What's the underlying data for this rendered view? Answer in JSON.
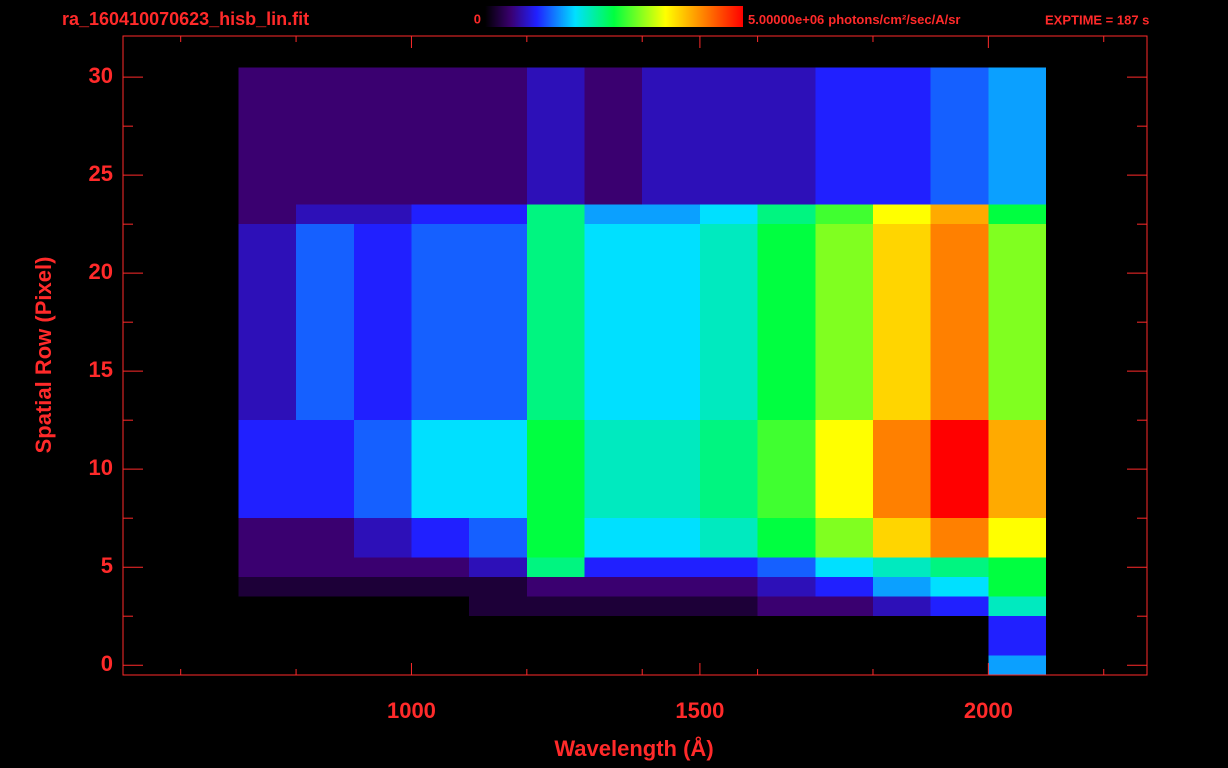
{
  "chart_data": {
    "type": "heatmap",
    "title": "ra_160410070623_hisb_lin.fit",
    "exptime": "EXPTIME = 187 s",
    "xlabel": "Wavelength (Å)",
    "ylabel": "Spatial Row (Pixel)",
    "xlim": [
      500,
      2275
    ],
    "xticks": [
      1000,
      1500,
      2000
    ],
    "xminorticks": [
      600,
      800,
      1200,
      1400,
      1600,
      1800,
      2200
    ],
    "ylim": [
      -0.5,
      32.1
    ],
    "yticks": [
      0,
      5,
      10,
      15,
      20,
      25,
      30
    ],
    "yminorticks": [
      2.5,
      7.5,
      12.5,
      17.5,
      22.5,
      27.5
    ],
    "zlim": [
      0,
      5000000
    ],
    "zticks": [
      0,
      {
        "value": 5000000,
        "label": "5.00000e+06"
      }
    ],
    "zunits": "photons/cm²/sec/A/sr",
    "x_bins": [
      700,
      800,
      900,
      1000,
      1100,
      1200,
      1300,
      1400,
      1500,
      1600,
      1700,
      1800,
      1900,
      2000,
      2100
    ],
    "y": [
      0,
      1,
      2,
      3,
      4,
      5,
      6,
      7,
      8,
      9,
      10,
      11,
      12,
      13,
      14,
      15,
      16,
      17,
      18,
      19,
      20,
      21,
      22,
      23,
      24,
      25,
      26,
      27,
      28,
      29,
      30
    ],
    "values": [
      [
        0,
        0,
        0,
        0,
        0,
        0,
        0,
        0,
        0,
        0,
        0,
        0,
        0,
        1500000.0
      ],
      [
        0,
        0,
        0,
        0,
        0,
        0,
        0,
        0,
        0,
        0,
        0,
        0,
        0,
        1000000.0
      ],
      [
        0,
        0,
        0,
        0,
        0,
        0,
        0,
        0,
        0,
        0,
        0,
        0,
        0,
        1000000.0
      ],
      [
        0,
        0,
        0,
        0,
        250000.0,
        250000.0,
        250000.0,
        250000.0,
        250000.0,
        500000.0,
        500000.0,
        750000.0,
        1000000.0,
        2000000.0
      ],
      [
        250000.0,
        250000.0,
        250000.0,
        250000.0,
        250000.0,
        500000.0,
        500000.0,
        500000.0,
        500000.0,
        750000.0,
        1000000.0,
        1500000.0,
        1750000.0,
        2500000.0
      ],
      [
        500000.0,
        500000.0,
        500000.0,
        500000.0,
        750000.0,
        2250000.0,
        1000000.0,
        1000000.0,
        1000000.0,
        1250000.0,
        1750000.0,
        2000000.0,
        2250000.0,
        2500000.0
      ],
      [
        500000.0,
        500000.0,
        750000.0,
        1000000.0,
        1250000.0,
        2500000.0,
        1750000.0,
        1750000.0,
        2000000.0,
        2500000.0,
        3000000.0,
        3750000.0,
        4250000.0,
        3500000.0
      ],
      [
        500000.0,
        500000.0,
        750000.0,
        1000000.0,
        1250000.0,
        2500000.0,
        1750000.0,
        1750000.0,
        2000000.0,
        2500000.0,
        3000000.0,
        3750000.0,
        4250000.0,
        3500000.0
      ],
      [
        1000000.0,
        1000000.0,
        1250000.0,
        1750000.0,
        1750000.0,
        2500000.0,
        2000000.0,
        2000000.0,
        2250000.0,
        2750000.0,
        3500000.0,
        4250000.0,
        5000000.0,
        4000000.0
      ],
      [
        1000000.0,
        1000000.0,
        1250000.0,
        1750000.0,
        1750000.0,
        2500000.0,
        2000000.0,
        2000000.0,
        2250000.0,
        2750000.0,
        3500000.0,
        4250000.0,
        5000000.0,
        4000000.0
      ],
      [
        1000000.0,
        1000000.0,
        1250000.0,
        1750000.0,
        1750000.0,
        2500000.0,
        2000000.0,
        2000000.0,
        2250000.0,
        2750000.0,
        3500000.0,
        4250000.0,
        5000000.0,
        4000000.0
      ],
      [
        1000000.0,
        1000000.0,
        1250000.0,
        1750000.0,
        1750000.0,
        2500000.0,
        2000000.0,
        2000000.0,
        2250000.0,
        2750000.0,
        3500000.0,
        4250000.0,
        5000000.0,
        4000000.0
      ],
      [
        1000000.0,
        1000000.0,
        1250000.0,
        1750000.0,
        1750000.0,
        2500000.0,
        2000000.0,
        2000000.0,
        2250000.0,
        2750000.0,
        3500000.0,
        4250000.0,
        5000000.0,
        4000000.0
      ],
      [
        750000.0,
        1250000.0,
        1000000.0,
        1250000.0,
        1250000.0,
        2250000.0,
        1750000.0,
        1750000.0,
        2000000.0,
        2500000.0,
        3000000.0,
        3750000.0,
        4250000.0,
        3000000.0
      ],
      [
        750000.0,
        1250000.0,
        1000000.0,
        1250000.0,
        1250000.0,
        2250000.0,
        1750000.0,
        1750000.0,
        2000000.0,
        2500000.0,
        3000000.0,
        3750000.0,
        4250000.0,
        3000000.0
      ],
      [
        750000.0,
        1250000.0,
        1000000.0,
        1250000.0,
        1250000.0,
        2250000.0,
        1750000.0,
        1750000.0,
        2000000.0,
        2500000.0,
        3000000.0,
        3750000.0,
        4250000.0,
        3000000.0
      ],
      [
        750000.0,
        1250000.0,
        1000000.0,
        1250000.0,
        1250000.0,
        2250000.0,
        1750000.0,
        1750000.0,
        2000000.0,
        2500000.0,
        3000000.0,
        3750000.0,
        4250000.0,
        3000000.0
      ],
      [
        750000.0,
        1250000.0,
        1000000.0,
        1250000.0,
        1250000.0,
        2250000.0,
        1750000.0,
        1750000.0,
        2000000.0,
        2500000.0,
        3000000.0,
        3750000.0,
        4250000.0,
        3000000.0
      ],
      [
        750000.0,
        1250000.0,
        1000000.0,
        1250000.0,
        1250000.0,
        2250000.0,
        1750000.0,
        1750000.0,
        2000000.0,
        2500000.0,
        3000000.0,
        3750000.0,
        4250000.0,
        3000000.0
      ],
      [
        750000.0,
        1250000.0,
        1000000.0,
        1250000.0,
        1250000.0,
        2250000.0,
        1750000.0,
        1750000.0,
        2000000.0,
        2500000.0,
        3000000.0,
        3750000.0,
        4250000.0,
        3000000.0
      ],
      [
        750000.0,
        1250000.0,
        1000000.0,
        1250000.0,
        1250000.0,
        2250000.0,
        1750000.0,
        1750000.0,
        2000000.0,
        2500000.0,
        3000000.0,
        3750000.0,
        4250000.0,
        3000000.0
      ],
      [
        750000.0,
        1250000.0,
        1000000.0,
        1250000.0,
        1250000.0,
        2250000.0,
        1750000.0,
        1750000.0,
        2000000.0,
        2500000.0,
        3000000.0,
        3750000.0,
        4250000.0,
        3000000.0
      ],
      [
        750000.0,
        1250000.0,
        1000000.0,
        1250000.0,
        1250000.0,
        2250000.0,
        1750000.0,
        1750000.0,
        2000000.0,
        2500000.0,
        3000000.0,
        3750000.0,
        4250000.0,
        3000000.0
      ],
      [
        500000.0,
        750000.0,
        750000.0,
        1000000.0,
        1000000.0,
        2250000.0,
        1500000.0,
        1500000.0,
        1750000.0,
        2250000.0,
        2750000.0,
        3500000.0,
        4000000.0,
        2500000.0
      ],
      [
        500000.0,
        500000.0,
        500000.0,
        500000.0,
        500000.0,
        750000.0,
        500000.0,
        750000.0,
        750000.0,
        750000.0,
        1000000.0,
        1000000.0,
        1250000.0,
        1500000.0
      ],
      [
        500000.0,
        500000.0,
        500000.0,
        500000.0,
        500000.0,
        750000.0,
        500000.0,
        750000.0,
        750000.0,
        750000.0,
        1000000.0,
        1000000.0,
        1250000.0,
        1500000.0
      ],
      [
        500000.0,
        500000.0,
        500000.0,
        500000.0,
        500000.0,
        750000.0,
        500000.0,
        750000.0,
        750000.0,
        750000.0,
        1000000.0,
        1000000.0,
        1250000.0,
        1500000.0
      ],
      [
        500000.0,
        500000.0,
        500000.0,
        500000.0,
        500000.0,
        750000.0,
        500000.0,
        750000.0,
        750000.0,
        750000.0,
        1000000.0,
        1000000.0,
        1250000.0,
        1500000.0
      ],
      [
        500000.0,
        500000.0,
        500000.0,
        500000.0,
        500000.0,
        750000.0,
        500000.0,
        750000.0,
        750000.0,
        750000.0,
        1000000.0,
        1000000.0,
        1250000.0,
        1500000.0
      ],
      [
        500000.0,
        500000.0,
        500000.0,
        500000.0,
        500000.0,
        750000.0,
        500000.0,
        750000.0,
        750000.0,
        750000.0,
        1000000.0,
        1000000.0,
        1250000.0,
        1500000.0
      ],
      [
        500000.0,
        500000.0,
        500000.0,
        500000.0,
        500000.0,
        750000.0,
        500000.0,
        750000.0,
        750000.0,
        750000.0,
        1000000.0,
        1000000.0,
        1250000.0,
        1500000.0
      ]
    ],
    "color": "#ff2a2a"
  }
}
